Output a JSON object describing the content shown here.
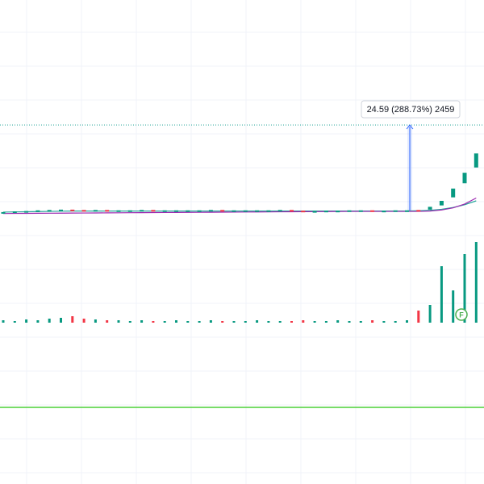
{
  "chart_data": {
    "type": "candlestick",
    "open": [
      8.2,
      8.3,
      8.5,
      8.6,
      8.8,
      8.9,
      9.0,
      8.9,
      8.8,
      8.9,
      8.8,
      8.8,
      8.8,
      8.9,
      8.8,
      8.8,
      8.8,
      8.8,
      8.8,
      8.9,
      8.8,
      8.8,
      8.8,
      8.8,
      8.8,
      8.9,
      8.7,
      8.6,
      8.6,
      8.7,
      8.7,
      8.8,
      8.8,
      8.7,
      8.7,
      8.8,
      8.9,
      9.0,
      10.2,
      12.5,
      16.5,
      21.0
    ],
    "close": [
      8.3,
      8.5,
      8.6,
      8.8,
      8.9,
      9.0,
      8.9,
      8.8,
      8.9,
      8.8,
      8.8,
      8.8,
      8.9,
      8.8,
      8.8,
      8.8,
      8.8,
      8.8,
      8.9,
      8.8,
      8.8,
      8.8,
      8.8,
      8.8,
      8.9,
      8.7,
      8.6,
      8.6,
      8.7,
      8.7,
      8.8,
      8.8,
      8.7,
      8.7,
      8.8,
      8.8,
      8.5,
      9.8,
      11.5,
      15.0,
      19.5,
      25.0
    ],
    "up_color": "#089981",
    "down_color": "#f23645",
    "ylim": [
      2.08,
      68.7
    ],
    "moving_averages": [
      {
        "color": "#26a69a",
        "values": [
          8.3,
          8.35,
          8.4,
          8.45,
          8.5,
          8.55,
          8.6,
          8.6,
          8.6,
          8.6,
          8.6,
          8.6,
          8.6,
          8.6,
          8.6,
          8.6,
          8.6,
          8.6,
          8.6,
          8.6,
          8.6,
          8.6,
          8.6,
          8.6,
          8.6,
          8.6,
          8.6,
          8.6,
          8.6,
          8.6,
          8.6,
          8.6,
          8.6,
          8.6,
          8.6,
          8.6,
          8.7,
          8.8,
          9.1,
          9.6,
          10.4,
          11.5
        ]
      },
      {
        "color": "#9c27b0",
        "values": [
          7.9,
          7.92,
          7.94,
          7.96,
          7.98,
          8.0,
          8.02,
          8.04,
          8.06,
          8.08,
          8.1,
          8.12,
          8.14,
          8.16,
          8.18,
          8.2,
          8.22,
          8.24,
          8.26,
          8.28,
          8.3,
          8.32,
          8.34,
          8.36,
          8.38,
          8.4,
          8.42,
          8.44,
          8.46,
          8.48,
          8.5,
          8.5,
          8.5,
          8.5,
          8.5,
          8.5,
          8.5,
          8.6,
          8.9,
          9.5,
          10.6,
          12.3
        ]
      }
    ],
    "volume": {
      "values": [
        3,
        2,
        4,
        3,
        5,
        6,
        8,
        5,
        4,
        3,
        3,
        2,
        3,
        2,
        2,
        3,
        2,
        2,
        3,
        2,
        2,
        2,
        3,
        2,
        2,
        2,
        3,
        2,
        2,
        3,
        2,
        2,
        3,
        2,
        2,
        3,
        15,
        22,
        70,
        40,
        85,
        100
      ],
      "ylim": [
        0,
        105
      ]
    },
    "measure_label": "24.59 (288.73%) 2459",
    "marker_label": "F"
  }
}
